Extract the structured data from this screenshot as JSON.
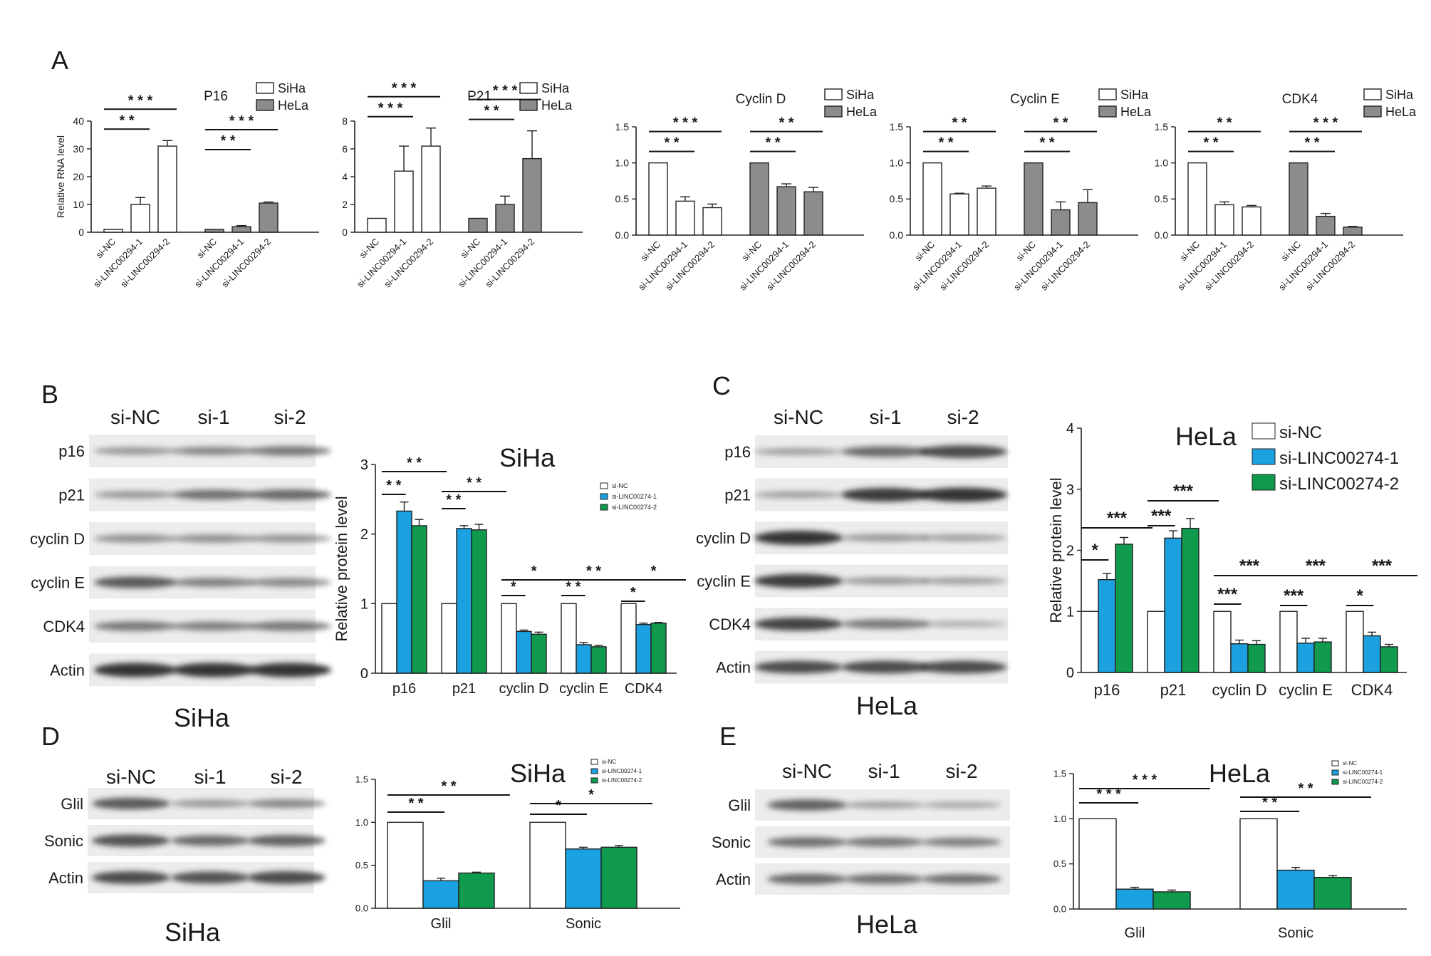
{
  "colors": {
    "siha": "#ffffff",
    "hela": "#8c8c8c",
    "si_nc": "#ffffff",
    "si1": "#1ba0e0",
    "si2": "#0f9a4d",
    "blot_bg": "#ececec",
    "band": "#2b2b2b"
  },
  "panel_letters": [
    "A",
    "B",
    "C",
    "D",
    "E"
  ],
  "chart_data": [
    {
      "id": "A1",
      "type": "bar",
      "title": "P16",
      "ylabel": "Relative RNA level",
      "ylim": [
        0,
        40
      ],
      "yticks": [
        "0",
        "10",
        "20",
        "30",
        "40"
      ],
      "legend": [
        "SiHa",
        "HeLa"
      ],
      "groups": [
        "SiHa",
        "HeLa"
      ],
      "categories": [
        "si-NC",
        "si-LINC00294-1",
        "si-LINC00294-2"
      ],
      "values": [
        [
          1,
          10,
          31
        ],
        [
          1,
          2,
          10.5
        ]
      ],
      "errors": [
        [
          0,
          2.5,
          2
        ],
        [
          0,
          0.4,
          0.4
        ]
      ],
      "sig": [
        [
          "* *",
          "* * *"
        ],
        [
          "* *",
          "* * *"
        ]
      ]
    },
    {
      "id": "A2",
      "type": "bar",
      "title": "P21",
      "ylabel": "",
      "ylim": [
        0,
        8
      ],
      "yticks": [
        "0",
        "2",
        "4",
        "6",
        "8"
      ],
      "legend": [
        "SiHa",
        "HeLa"
      ],
      "groups": [
        "SiHa",
        "HeLa"
      ],
      "categories": [
        "si-NC",
        "si-LINC00294-1",
        "si-LINC00294-2"
      ],
      "values": [
        [
          1,
          4.4,
          6.2
        ],
        [
          1,
          2,
          5.3
        ]
      ],
      "errors": [
        [
          0,
          1.8,
          1.3
        ],
        [
          0,
          0.6,
          2
        ]
      ],
      "sig": [
        [
          "* * *",
          "* * *"
        ],
        [
          "* *",
          "* * *"
        ]
      ]
    },
    {
      "id": "A3",
      "type": "bar",
      "title": "Cyclin D",
      "ylabel": "",
      "ylim": [
        0,
        1.5
      ],
      "yticks": [
        "0.0",
        "0.5",
        "1.0",
        "1.5"
      ],
      "legend": [
        "SiHa",
        "HeLa"
      ],
      "groups": [
        "SiHa",
        "HeLa"
      ],
      "categories": [
        "si-NC",
        "si-LINC00294-1",
        "si-LINC00294-2"
      ],
      "values": [
        [
          1,
          0.47,
          0.38
        ],
        [
          1,
          0.67,
          0.6
        ]
      ],
      "errors": [
        [
          0,
          0.06,
          0.05
        ],
        [
          0,
          0.04,
          0.06
        ]
      ],
      "sig": [
        [
          "* *",
          "* * *"
        ],
        [
          "* *",
          "* *"
        ]
      ]
    },
    {
      "id": "A4",
      "type": "bar",
      "title": "Cyclin E",
      "ylabel": "",
      "ylim": [
        0,
        1.5
      ],
      "yticks": [
        "0.0",
        "0.5",
        "1.0",
        "1.5"
      ],
      "legend": [
        "SiHa",
        "HeLa"
      ],
      "groups": [
        "SiHa",
        "HeLa"
      ],
      "categories": [
        "si-NC",
        "si-LINC00294-1",
        "si-LINC00294-2"
      ],
      "values": [
        [
          1,
          0.57,
          0.65
        ],
        [
          1,
          0.35,
          0.45
        ]
      ],
      "errors": [
        [
          0,
          0.01,
          0.03
        ],
        [
          0,
          0.11,
          0.18
        ]
      ],
      "sig": [
        [
          "* *",
          "* *"
        ],
        [
          "* *",
          "* *"
        ]
      ]
    },
    {
      "id": "A5",
      "type": "bar",
      "title": "CDK4",
      "ylabel": "",
      "ylim": [
        0,
        1.5
      ],
      "yticks": [
        "0.0",
        "0.5",
        "1.0",
        "1.5"
      ],
      "legend": [
        "SiHa",
        "HeLa"
      ],
      "groups": [
        "SiHa",
        "HeLa"
      ],
      "categories": [
        "si-NC",
        "si-LINC00294-1",
        "si-LINC00294-2"
      ],
      "values": [
        [
          1,
          0.42,
          0.39
        ],
        [
          1,
          0.26,
          0.11
        ]
      ],
      "errors": [
        [
          0,
          0.04,
          0.02
        ],
        [
          0,
          0.04,
          0.01
        ]
      ],
      "sig": [
        [
          "* *",
          "* *"
        ],
        [
          "* *",
          "* * *"
        ]
      ]
    },
    {
      "id": "B",
      "type": "bar",
      "title": "SiHa",
      "ylabel": "Relative protein level",
      "ylim": [
        0,
        3
      ],
      "yticks": [
        "0",
        "1",
        "2",
        "3"
      ],
      "legend": [
        "si-NC",
        "si-LINC00274-1",
        "si-LINC00274-2"
      ],
      "categories": [
        "p16",
        "p21",
        "cyclin D",
        "cyclin E",
        "CDK4"
      ],
      "series": [
        {
          "name": "si-NC",
          "values": [
            1,
            1,
            1,
            1,
            1
          ]
        },
        {
          "name": "si-LINC00274-1",
          "values": [
            2.33,
            2.08,
            0.6,
            0.41,
            0.7
          ]
        },
        {
          "name": "si-LINC00274-2",
          "values": [
            2.12,
            2.06,
            0.56,
            0.38,
            0.72
          ]
        }
      ],
      "errors": [
        [
          0,
          0,
          0,
          0,
          0
        ],
        [
          0.13,
          0.04,
          0.02,
          0.03,
          0.02
        ],
        [
          0.09,
          0.08,
          0.03,
          0.02,
          0.01
        ]
      ],
      "sig": [
        [
          "* *",
          "* *"
        ],
        [
          "* *",
          "* *"
        ],
        [
          "*",
          "*"
        ],
        [
          "* *",
          "* *"
        ],
        [
          "*",
          "*"
        ]
      ]
    },
    {
      "id": "C",
      "type": "bar",
      "title": "HeLa",
      "ylabel": "Relative protein level",
      "ylim": [
        0,
        4
      ],
      "yticks": [
        "0",
        "1",
        "2",
        "3",
        "4"
      ],
      "legend": [
        "si-NC",
        "si-LINC00274-1",
        "si-LINC00274-2"
      ],
      "categories": [
        "p16",
        "p21",
        "cyclin D",
        "cyclin E",
        "CDK4"
      ],
      "series": [
        {
          "name": "si-NC",
          "values": [
            1,
            1,
            1,
            1,
            1
          ]
        },
        {
          "name": "si-LINC00274-1",
          "values": [
            1.52,
            2.2,
            0.47,
            0.48,
            0.6
          ]
        },
        {
          "name": "si-LINC00274-2",
          "values": [
            2.1,
            2.36,
            0.46,
            0.5,
            0.42
          ]
        }
      ],
      "errors": [
        [
          0,
          0,
          0,
          0,
          0
        ],
        [
          0.1,
          0.12,
          0.06,
          0.08,
          0.06
        ],
        [
          0.11,
          0.16,
          0.06,
          0.06,
          0.04
        ]
      ],
      "sig": [
        [
          "*",
          "***"
        ],
        [
          "***",
          "***"
        ],
        [
          "***",
          "***"
        ],
        [
          "***",
          "***"
        ],
        [
          "*",
          "***"
        ]
      ]
    },
    {
      "id": "D",
      "type": "bar",
      "title": "SiHa",
      "ylabel": "",
      "ylim": [
        0,
        1.5
      ],
      "yticks": [
        "0.0",
        "0.5",
        "1.0",
        "1.5"
      ],
      "legend": [
        "si-NC",
        "si-LINC00274-1",
        "si-LINC00274-2"
      ],
      "categories": [
        "Glil",
        "Sonic"
      ],
      "series": [
        {
          "name": "si-NC",
          "values": [
            1,
            1
          ]
        },
        {
          "name": "si-LINC00274-1",
          "values": [
            0.32,
            0.69
          ]
        },
        {
          "name": "si-LINC00274-2",
          "values": [
            0.41,
            0.71
          ]
        }
      ],
      "errors": [
        [
          0,
          0
        ],
        [
          0.03,
          0.02
        ],
        [
          0.01,
          0.02
        ]
      ],
      "sig": [
        [
          "* *",
          "* *"
        ],
        [
          "*",
          "*"
        ]
      ]
    },
    {
      "id": "E",
      "type": "bar",
      "title": "HeLa",
      "ylabel": "",
      "ylim": [
        0,
        1.5
      ],
      "yticks": [
        "0.0",
        "0.5",
        "1.0",
        "1.5"
      ],
      "legend": [
        "si-NC",
        "si-LINC00274-1",
        "si-LINC00274-2"
      ],
      "categories": [
        "Glil",
        "Sonic"
      ],
      "series": [
        {
          "name": "si-NC",
          "values": [
            1,
            1
          ]
        },
        {
          "name": "si-LINC00274-1",
          "values": [
            0.22,
            0.43
          ]
        },
        {
          "name": "si-LINC00274-2",
          "values": [
            0.19,
            0.35
          ]
        }
      ],
      "errors": [
        [
          0,
          0
        ],
        [
          0.02,
          0.03
        ],
        [
          0.02,
          0.02
        ]
      ],
      "sig": [
        [
          "* * *",
          "* * *"
        ],
        [
          "* *",
          "* *"
        ]
      ]
    }
  ],
  "blots": [
    {
      "id": "B",
      "caption": "SiHa",
      "lanes": [
        "si-NC",
        "si-1",
        "si-2"
      ],
      "rows": [
        {
          "label": "p16",
          "intensity": [
            0.35,
            0.45,
            0.55
          ]
        },
        {
          "label": "p21",
          "intensity": [
            0.35,
            0.6,
            0.65
          ]
        },
        {
          "label": "cyclin D",
          "intensity": [
            0.4,
            0.4,
            0.38
          ]
        },
        {
          "label": "cyclin E",
          "intensity": [
            0.75,
            0.5,
            0.45
          ]
        },
        {
          "label": "CDK4",
          "intensity": [
            0.55,
            0.5,
            0.55
          ]
        },
        {
          "label": "Actin",
          "intensity": [
            1.0,
            1.0,
            1.0
          ]
        }
      ]
    },
    {
      "id": "C",
      "caption": "HeLa",
      "lanes": [
        "si-NC",
        "si-1",
        "si-2"
      ],
      "rows": [
        {
          "label": "p16",
          "intensity": [
            0.3,
            0.65,
            0.85
          ]
        },
        {
          "label": "p21",
          "intensity": [
            0.3,
            0.95,
            1.0
          ]
        },
        {
          "label": "cyclin D",
          "intensity": [
            1.0,
            0.35,
            0.3
          ]
        },
        {
          "label": "cyclin E",
          "intensity": [
            0.95,
            0.35,
            0.3
          ]
        },
        {
          "label": "CDK4",
          "intensity": [
            0.9,
            0.55,
            0.2
          ]
        },
        {
          "label": "Actin",
          "intensity": [
            0.85,
            0.85,
            0.85
          ]
        }
      ]
    },
    {
      "id": "D",
      "caption": "SiHa",
      "lanes": [
        "si-NC",
        "si-1",
        "si-2"
      ],
      "rows": [
        {
          "label": "Glil",
          "intensity": [
            0.75,
            0.35,
            0.45
          ]
        },
        {
          "label": "Sonic",
          "intensity": [
            0.8,
            0.65,
            0.7
          ]
        },
        {
          "label": "Actin",
          "intensity": [
            0.85,
            0.8,
            0.85
          ]
        }
      ]
    },
    {
      "id": "E",
      "caption": "HeLa",
      "lanes": [
        "si-NC",
        "si-1",
        "si-2"
      ],
      "rows": [
        {
          "label": "Glil",
          "intensity": [
            0.7,
            0.3,
            0.25
          ]
        },
        {
          "label": "Sonic",
          "intensity": [
            0.6,
            0.55,
            0.5
          ]
        },
        {
          "label": "Actin",
          "intensity": [
            0.65,
            0.6,
            0.6
          ]
        }
      ]
    }
  ]
}
